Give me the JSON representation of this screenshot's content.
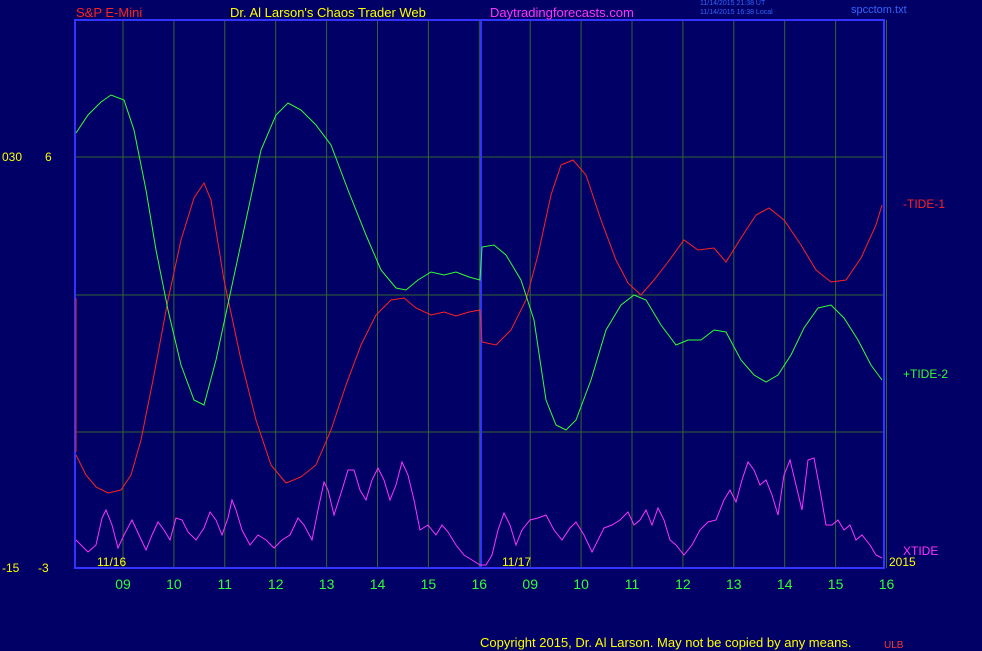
{
  "header": {
    "symbol": "S&P E-Mini",
    "author": "Dr. Al Larson's Chaos Trader Web",
    "site": "Daytradingforecasts.com",
    "stamp_line1": "11/14/2015 21:38 UT",
    "stamp_line2": "11/14/2015 16:38 Local",
    "file": "spcctom.txt"
  },
  "footer": {
    "copyright": "Copyright 2015, Dr. Al Larson. May not be copied by any means.",
    "corner_mark": "ULB"
  },
  "colors": {
    "background": "#000066",
    "frame": "#3333ff",
    "grid": "#336633",
    "tide1": "#ff2222",
    "tide2": "#33ff33",
    "xtide": "#ff33ff",
    "axis_text": "#ffff00",
    "hour_text": "#33ff33"
  },
  "chart_data": {
    "type": "line",
    "y_axis_labels": [
      {
        "outer": "030",
        "inner": "6"
      },
      {
        "outer": "-15",
        "inner": "-3"
      }
    ],
    "day_labels": [
      "11/16",
      "11/17"
    ],
    "year_label": "2015",
    "x_ticks": [
      "09",
      "10",
      "11",
      "12",
      "13",
      "14",
      "15",
      "16",
      "09",
      "10",
      "11",
      "12",
      "13",
      "14",
      "15",
      "16"
    ],
    "series": [
      {
        "name": "-TIDE-1",
        "color": "#ff2222",
        "points": [
          [
            0,
            455
          ],
          [
            10,
            475
          ],
          [
            20,
            487
          ],
          [
            32,
            493
          ],
          [
            45,
            490
          ],
          [
            55,
            475
          ],
          [
            65,
            440
          ],
          [
            78,
            375
          ],
          [
            92,
            300
          ],
          [
            105,
            240
          ],
          [
            118,
            198
          ],
          [
            128,
            183
          ],
          [
            135,
            200
          ],
          [
            148,
            280
          ],
          [
            165,
            360
          ],
          [
            180,
            420
          ],
          [
            195,
            465
          ],
          [
            210,
            483
          ],
          [
            225,
            477
          ],
          [
            240,
            465
          ],
          [
            255,
            430
          ],
          [
            270,
            385
          ],
          [
            285,
            345
          ],
          [
            300,
            315
          ],
          [
            315,
            300
          ],
          [
            328,
            298
          ],
          [
            340,
            308
          ],
          [
            355,
            315
          ],
          [
            368,
            312
          ],
          [
            380,
            316
          ],
          [
            393,
            312
          ],
          [
            404,
            310
          ],
          [
            406,
            342
          ],
          [
            420,
            345
          ],
          [
            435,
            330
          ],
          [
            450,
            300
          ],
          [
            462,
            255
          ],
          [
            475,
            195
          ],
          [
            485,
            165
          ],
          [
            497,
            160
          ],
          [
            510,
            175
          ],
          [
            525,
            220
          ],
          [
            540,
            260
          ],
          [
            552,
            283
          ],
          [
            565,
            295
          ],
          [
            578,
            280
          ],
          [
            592,
            262
          ],
          [
            608,
            240
          ],
          [
            622,
            250
          ],
          [
            638,
            248
          ],
          [
            650,
            262
          ],
          [
            665,
            238
          ],
          [
            680,
            215
          ],
          [
            693,
            208
          ],
          [
            708,
            220
          ],
          [
            725,
            245
          ],
          [
            740,
            270
          ],
          [
            755,
            282
          ],
          [
            770,
            280
          ],
          [
            785,
            258
          ],
          [
            800,
            225
          ],
          [
            806,
            205
          ]
        ],
        "line_end_label": "-TIDE-1"
      },
      {
        "name": "+TIDE-2",
        "color": "#33ff33",
        "points": [
          [
            0,
            133
          ],
          [
            12,
            115
          ],
          [
            25,
            102
          ],
          [
            35,
            95
          ],
          [
            48,
            100
          ],
          [
            58,
            130
          ],
          [
            70,
            190
          ],
          [
            80,
            250
          ],
          [
            92,
            310
          ],
          [
            105,
            365
          ],
          [
            118,
            400
          ],
          [
            128,
            405
          ],
          [
            140,
            360
          ],
          [
            155,
            290
          ],
          [
            170,
            220
          ],
          [
            185,
            150
          ],
          [
            200,
            115
          ],
          [
            212,
            103
          ],
          [
            225,
            110
          ],
          [
            240,
            125
          ],
          [
            255,
            145
          ],
          [
            272,
            190
          ],
          [
            290,
            235
          ],
          [
            305,
            270
          ],
          [
            320,
            288
          ],
          [
            330,
            290
          ],
          [
            342,
            280
          ],
          [
            355,
            272
          ],
          [
            368,
            275
          ],
          [
            380,
            272
          ],
          [
            393,
            277
          ],
          [
            404,
            280
          ],
          [
            406,
            247
          ],
          [
            418,
            245
          ],
          [
            430,
            255
          ],
          [
            445,
            280
          ],
          [
            458,
            320
          ],
          [
            470,
            400
          ],
          [
            480,
            425
          ],
          [
            490,
            430
          ],
          [
            500,
            420
          ],
          [
            515,
            380
          ],
          [
            530,
            330
          ],
          [
            545,
            305
          ],
          [
            558,
            295
          ],
          [
            570,
            300
          ],
          [
            585,
            325
          ],
          [
            600,
            345
          ],
          [
            612,
            340
          ],
          [
            625,
            340
          ],
          [
            638,
            330
          ],
          [
            650,
            332
          ],
          [
            665,
            360
          ],
          [
            678,
            375
          ],
          [
            690,
            382
          ],
          [
            702,
            375
          ],
          [
            715,
            355
          ],
          [
            728,
            328
          ],
          [
            742,
            308
          ],
          [
            755,
            305
          ],
          [
            768,
            318
          ],
          [
            782,
            340
          ],
          [
            795,
            365
          ],
          [
            806,
            380
          ]
        ],
        "line_end_label": "+TIDE-2"
      },
      {
        "name": "XTIDE",
        "color": "#ff33ff",
        "points": [
          [
            0,
            540
          ],
          [
            12,
            552
          ],
          [
            20,
            545
          ],
          [
            26,
            518
          ],
          [
            30,
            510
          ],
          [
            36,
            525
          ],
          [
            42,
            548
          ],
          [
            48,
            535
          ],
          [
            56,
            520
          ],
          [
            63,
            535
          ],
          [
            70,
            550
          ],
          [
            76,
            535
          ],
          [
            82,
            522
          ],
          [
            88,
            530
          ],
          [
            94,
            540
          ],
          [
            100,
            518
          ],
          [
            106,
            520
          ],
          [
            112,
            532
          ],
          [
            120,
            540
          ],
          [
            128,
            528
          ],
          [
            134,
            512
          ],
          [
            140,
            520
          ],
          [
            146,
            535
          ],
          [
            152,
            518
          ],
          [
            156,
            500
          ],
          [
            160,
            510
          ],
          [
            166,
            530
          ],
          [
            174,
            545
          ],
          [
            182,
            535
          ],
          [
            190,
            540
          ],
          [
            198,
            548
          ],
          [
            206,
            540
          ],
          [
            214,
            535
          ],
          [
            222,
            518
          ],
          [
            228,
            525
          ],
          [
            236,
            540
          ],
          [
            242,
            510
          ],
          [
            248,
            482
          ],
          [
            252,
            490
          ],
          [
            258,
            515
          ],
          [
            266,
            490
          ],
          [
            272,
            470
          ],
          [
            278,
            470
          ],
          [
            284,
            490
          ],
          [
            290,
            500
          ],
          [
            296,
            480
          ],
          [
            302,
            468
          ],
          [
            308,
            480
          ],
          [
            314,
            500
          ],
          [
            320,
            485
          ],
          [
            326,
            462
          ],
          [
            332,
            475
          ],
          [
            338,
            500
          ],
          [
            344,
            530
          ],
          [
            352,
            525
          ],
          [
            360,
            535
          ],
          [
            366,
            525
          ],
          [
            372,
            532
          ],
          [
            380,
            545
          ],
          [
            388,
            555
          ],
          [
            396,
            560
          ],
          [
            404,
            565
          ],
          [
            410,
            565
          ],
          [
            416,
            555
          ],
          [
            422,
            530
          ],
          [
            428,
            513
          ],
          [
            434,
            525
          ],
          [
            440,
            545
          ],
          [
            446,
            530
          ],
          [
            454,
            520
          ],
          [
            462,
            518
          ],
          [
            470,
            515
          ],
          [
            478,
            530
          ],
          [
            486,
            540
          ],
          [
            494,
            528
          ],
          [
            500,
            522
          ],
          [
            508,
            535
          ],
          [
            516,
            552
          ],
          [
            522,
            540
          ],
          [
            528,
            528
          ],
          [
            536,
            525
          ],
          [
            544,
            520
          ],
          [
            552,
            512
          ],
          [
            558,
            525
          ],
          [
            564,
            520
          ],
          [
            570,
            510
          ],
          [
            576,
            525
          ],
          [
            582,
            508
          ],
          [
            588,
            520
          ],
          [
            594,
            540
          ],
          [
            600,
            545
          ],
          [
            608,
            555
          ],
          [
            616,
            545
          ],
          [
            624,
            530
          ],
          [
            632,
            522
          ],
          [
            640,
            520
          ],
          [
            648,
            500
          ],
          [
            654,
            490
          ],
          [
            660,
            502
          ],
          [
            666,
            480
          ],
          [
            672,
            462
          ],
          [
            678,
            470
          ],
          [
            684,
            485
          ],
          [
            690,
            480
          ],
          [
            696,
            495
          ],
          [
            702,
            515
          ],
          [
            708,
            475
          ],
          [
            714,
            460
          ],
          [
            720,
            485
          ],
          [
            726,
            510
          ],
          [
            732,
            460
          ],
          [
            738,
            458
          ],
          [
            744,
            490
          ],
          [
            750,
            525
          ],
          [
            756,
            525
          ],
          [
            762,
            520
          ],
          [
            768,
            530
          ],
          [
            774,
            525
          ],
          [
            780,
            540
          ],
          [
            786,
            535
          ],
          [
            794,
            545
          ],
          [
            800,
            555
          ],
          [
            806,
            558
          ]
        ],
        "line_end_label": "XTIDE"
      }
    ]
  }
}
